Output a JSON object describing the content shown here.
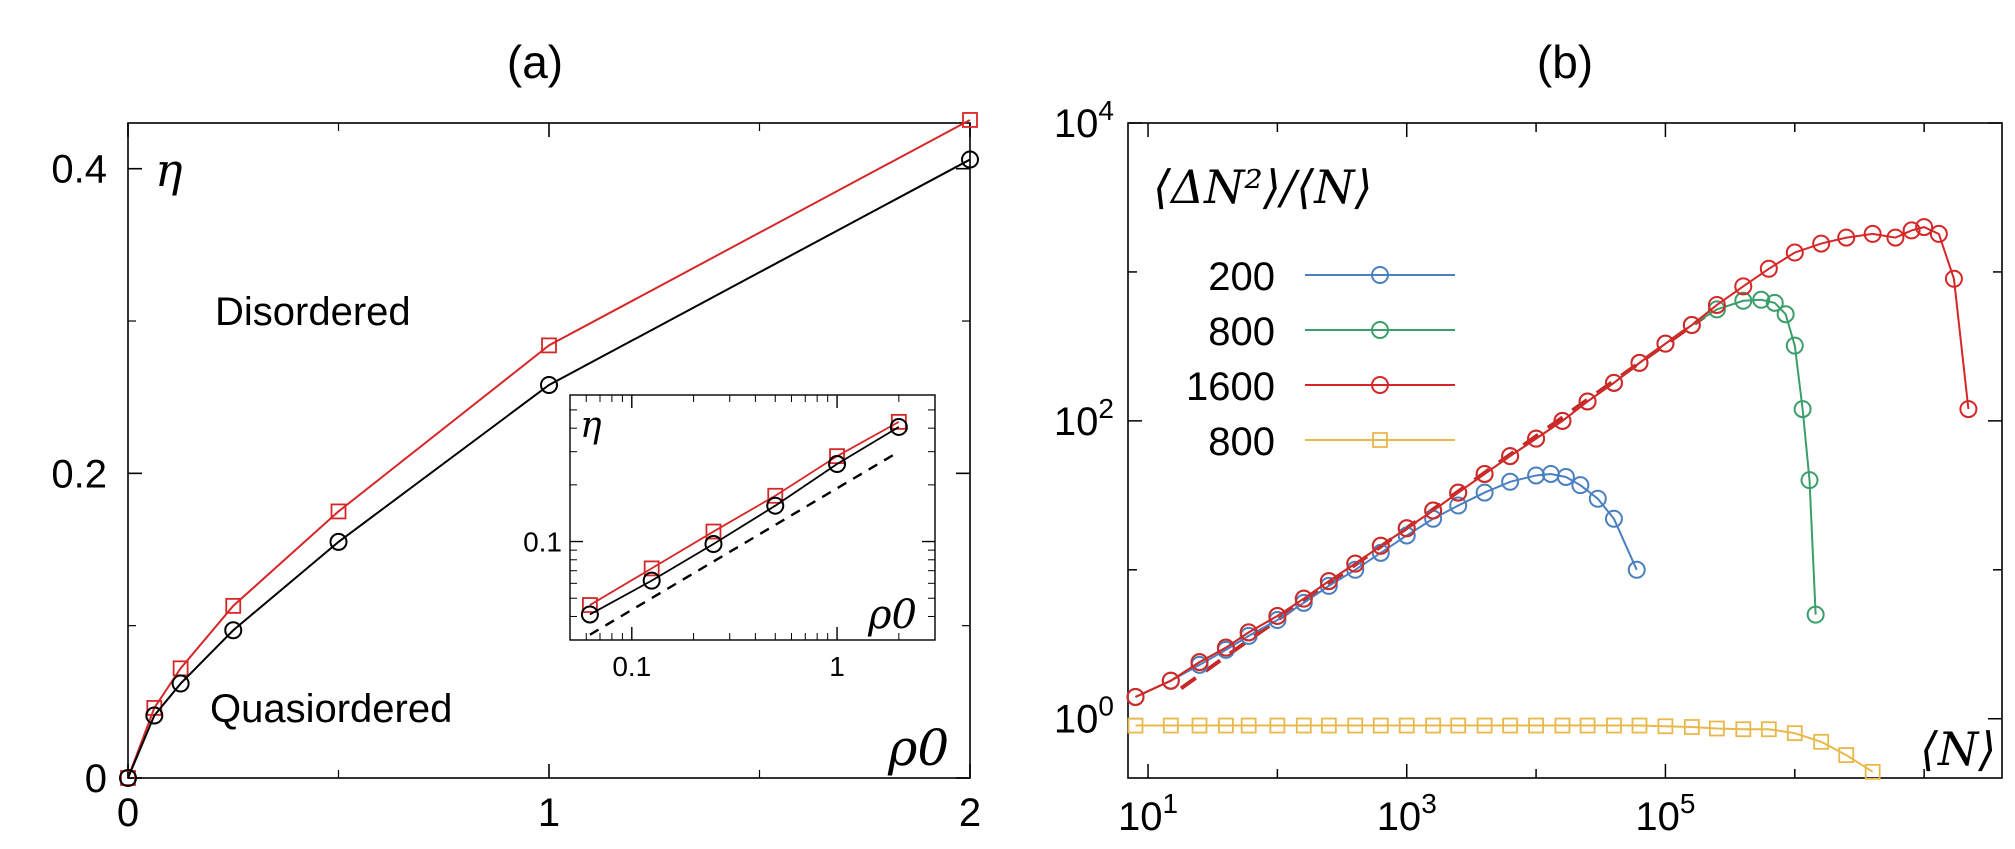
{
  "chart_data": [
    {
      "type": "line",
      "panel_label": "(a)",
      "xlabel": "ρ0",
      "ylabel": "η",
      "xlim": [
        0,
        2
      ],
      "ylim": [
        0,
        0.43
      ],
      "xticks": [
        0,
        1,
        2
      ],
      "xtick_labels": [
        "0",
        "1",
        "2"
      ],
      "yticks": [
        0,
        0.2,
        0.4
      ],
      "ytick_labels": [
        "0",
        "0.2",
        "0.4"
      ],
      "regions": [
        "Disordered",
        "Quasiordered"
      ],
      "series": [
        {
          "color": "#d62728",
          "marker": "square",
          "x": [
            0,
            0.0625,
            0.125,
            0.25,
            0.5,
            1,
            2
          ],
          "y": [
            0,
            0.046,
            0.072,
            0.113,
            0.175,
            0.284,
            0.432
          ]
        },
        {
          "color": "#000000",
          "marker": "circle",
          "x": [
            0,
            0.0625,
            0.125,
            0.25,
            0.5,
            1,
            2
          ],
          "y": [
            0,
            0.041,
            0.062,
            0.097,
            0.155,
            0.258,
            0.406
          ]
        }
      ],
      "inset": {
        "scale": "log-log",
        "xlabel": "ρ0",
        "ylabel": "η",
        "xlim": [
          0.05,
          3
        ],
        "ylim": [
          0.03,
          0.6
        ],
        "xticks": [
          0.1,
          1
        ],
        "xtick_labels": [
          "0.1",
          "1"
        ],
        "yticks": [
          0.1
        ],
        "ytick_labels": [
          "0.1"
        ],
        "dashed_guide": {
          "x": [
            0.0625,
            2
          ],
          "y": [
            0.032,
            0.3
          ]
        }
      }
    },
    {
      "type": "line",
      "panel_label": "(b)",
      "scale": "log-log",
      "xlabel": "⟨N⟩",
      "ylabel": "⟨ΔN²⟩/⟨N⟩",
      "xlim": [
        7,
        40000000
      ],
      "ylim": [
        0.4,
        10000
      ],
      "xticks": [
        10,
        1000,
        100000
      ],
      "xtick_labels": [
        "10^1",
        "10^3",
        "10^5"
      ],
      "yticks": [
        1,
        100,
        10000
      ],
      "ytick_labels": [
        "10^0",
        "10^2",
        "10^4"
      ],
      "legend": [
        "200",
        "800",
        "1600",
        "800"
      ],
      "legend_position": "top-left",
      "dashed_guide": {
        "color": "#c62828",
        "x": [
          18,
          200000
        ],
        "y": [
          1.6,
          500
        ]
      },
      "series": [
        {
          "name": "200",
          "color": "#4a7fc1",
          "marker": "circle",
          "x": [
            8,
            15,
            25,
            40,
            60,
            100,
            160,
            250,
            400,
            630,
            1000,
            1600,
            2500,
            4000,
            6300,
            10000,
            13000,
            17000,
            22000,
            30000,
            40000,
            60000
          ],
          "y": [
            1.4,
            1.8,
            2.3,
            2.9,
            3.6,
            4.6,
            6,
            7.8,
            10,
            13,
            17,
            22,
            27,
            33,
            39,
            43,
            44,
            42,
            37,
            30,
            22,
            10
          ]
        },
        {
          "name": "800",
          "color": "#3b9e6a",
          "marker": "circle",
          "x": [
            8,
            15,
            25,
            40,
            60,
            100,
            160,
            250,
            400,
            630,
            1000,
            1600,
            2500,
            4000,
            6300,
            10000,
            16000,
            25000,
            40000,
            63000,
            100000,
            160000,
            250000,
            400000,
            550000,
            700000,
            850000,
            1000000,
            1150000,
            1300000,
            1450000
          ],
          "y": [
            1.4,
            1.8,
            2.4,
            3,
            3.8,
            4.9,
            6.4,
            8.4,
            11,
            14.5,
            19,
            25,
            33,
            44,
            58,
            76,
            100,
            135,
            180,
            245,
            330,
            440,
            560,
            640,
            650,
            620,
            520,
            320,
            120,
            40,
            5
          ]
        },
        {
          "name": "1600",
          "color": "#d62728",
          "marker": "circle",
          "x": [
            8,
            15,
            25,
            40,
            60,
            100,
            160,
            250,
            400,
            630,
            1000,
            1600,
            2500,
            4000,
            6300,
            10000,
            16000,
            25000,
            40000,
            63000,
            100000,
            160000,
            250000,
            400000,
            630000,
            1000000,
            1600000,
            2500000,
            4000000,
            6000000,
            8000000,
            10000000,
            13000000,
            17000000,
            22000000
          ],
          "y": [
            1.4,
            1.8,
            2.4,
            3,
            3.8,
            4.9,
            6.4,
            8.4,
            11,
            14.5,
            19,
            25,
            33,
            44,
            58,
            76,
            100,
            135,
            180,
            245,
            330,
            440,
            600,
            800,
            1050,
            1350,
            1550,
            1700,
            1800,
            1700,
            1900,
            2000,
            1800,
            900,
            120
          ]
        },
        {
          "name": "800",
          "color": "#e8b84a",
          "marker": "square",
          "x": [
            8,
            15,
            25,
            40,
            60,
            100,
            160,
            250,
            400,
            630,
            1000,
            1600,
            2500,
            4000,
            6300,
            10000,
            16000,
            25000,
            40000,
            63000,
            100000,
            160000,
            250000,
            400000,
            630000,
            1000000,
            1600000,
            2500000,
            4000000
          ],
          "y": [
            0.9,
            0.9,
            0.9,
            0.9,
            0.9,
            0.9,
            0.9,
            0.9,
            0.9,
            0.9,
            0.9,
            0.9,
            0.9,
            0.9,
            0.9,
            0.9,
            0.9,
            0.9,
            0.9,
            0.9,
            0.89,
            0.88,
            0.86,
            0.85,
            0.85,
            0.8,
            0.7,
            0.57,
            0.44
          ]
        }
      ]
    }
  ]
}
